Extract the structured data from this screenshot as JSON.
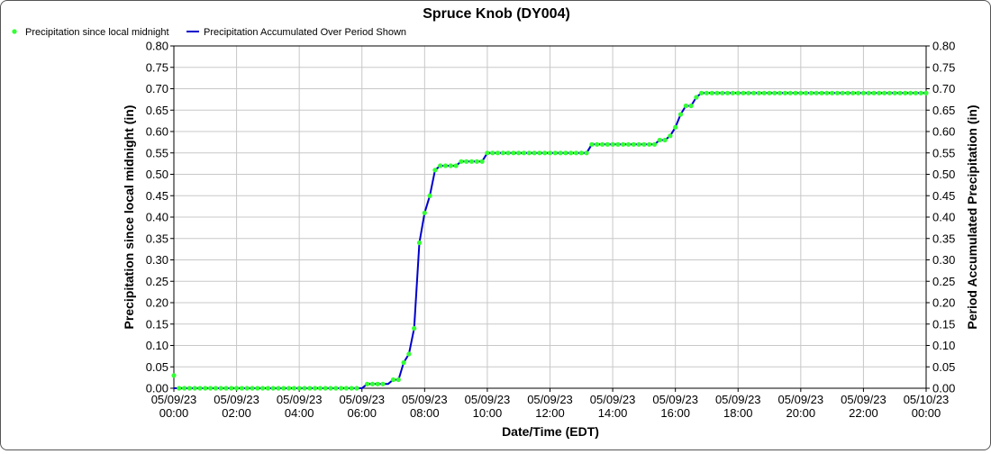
{
  "chart_data": {
    "type": "line",
    "title": "Spruce Knob (DY004)",
    "xlabel": "Date/Time (EDT)",
    "ylabel_left": "Precipitation since local midnight (in)",
    "ylabel_right": "Period Accumulated Precipitation (in)",
    "ylim": [
      0,
      0.8
    ],
    "yticks": [
      "0.00",
      "0.05",
      "0.10",
      "0.15",
      "0.20",
      "0.25",
      "0.30",
      "0.35",
      "0.40",
      "0.45",
      "0.50",
      "0.55",
      "0.60",
      "0.65",
      "0.70",
      "0.75",
      "0.80"
    ],
    "xlim_hours": [
      0,
      24
    ],
    "xticks": [
      {
        "date": "05/09/23",
        "time": "00:00"
      },
      {
        "date": "05/09/23",
        "time": "02:00"
      },
      {
        "date": "05/09/23",
        "time": "04:00"
      },
      {
        "date": "05/09/23",
        "time": "06:00"
      },
      {
        "date": "05/09/23",
        "time": "08:00"
      },
      {
        "date": "05/09/23",
        "time": "10:00"
      },
      {
        "date": "05/09/23",
        "time": "12:00"
      },
      {
        "date": "05/09/23",
        "time": "14:00"
      },
      {
        "date": "05/09/23",
        "time": "16:00"
      },
      {
        "date": "05/09/23",
        "time": "18:00"
      },
      {
        "date": "05/09/23",
        "time": "20:00"
      },
      {
        "date": "05/09/23",
        "time": "22:00"
      },
      {
        "date": "05/10/23",
        "time": "00:00"
      }
    ],
    "grid": true,
    "legend_position": "top-left",
    "series": [
      {
        "name": "Precipitation since local midnight",
        "style": "markers",
        "color": "#33ff33",
        "segments": [
          {
            "start": 0.0,
            "end": 0.0,
            "value": 0.03
          },
          {
            "start": 0.167,
            "end": 6.0,
            "value": 0.0
          },
          {
            "start": 6.167,
            "end": 6.833,
            "value": 0.01
          },
          {
            "start": 7.0,
            "end": 7.167,
            "value": 0.02
          }
        ],
        "points": [
          {
            "t": 7.333,
            "v": 0.06
          },
          {
            "t": 7.5,
            "v": 0.08
          },
          {
            "t": 7.667,
            "v": 0.14
          },
          {
            "t": 7.833,
            "v": 0.34
          },
          {
            "t": 8.0,
            "v": 0.41
          },
          {
            "t": 8.167,
            "v": 0.45
          },
          {
            "t": 8.333,
            "v": 0.51
          },
          {
            "t": 8.5,
            "v": 0.52
          },
          {
            "t": 8.667,
            "v": 0.52
          },
          {
            "t": 8.833,
            "v": 0.52
          },
          {
            "t": 9.0,
            "v": 0.52
          },
          {
            "t": 9.167,
            "v": 0.53
          },
          {
            "t": 9.333,
            "v": 0.53
          },
          {
            "t": 9.5,
            "v": 0.53
          },
          {
            "t": 9.667,
            "v": 0.53
          },
          {
            "t": 9.833,
            "v": 0.53
          },
          {
            "t": 15.333,
            "v": 0.57
          },
          {
            "t": 15.5,
            "v": 0.58
          },
          {
            "t": 15.667,
            "v": 0.58
          },
          {
            "t": 15.833,
            "v": 0.59
          },
          {
            "t": 16.0,
            "v": 0.61
          },
          {
            "t": 16.167,
            "v": 0.64
          },
          {
            "t": 16.333,
            "v": 0.66
          },
          {
            "t": 16.5,
            "v": 0.66
          },
          {
            "t": 16.667,
            "v": 0.68
          }
        ],
        "segments_late": [
          {
            "start": 10.0,
            "end": 13.167,
            "value": 0.55
          },
          {
            "start": 13.333,
            "end": 15.167,
            "value": 0.57
          },
          {
            "start": 16.833,
            "end": 24.0,
            "value": 0.69
          }
        ]
      },
      {
        "name": "Precipitation Accumulated Over Period Shown",
        "style": "line",
        "color": "#0000cc",
        "points": [
          {
            "t": 0.0,
            "v": 0.0
          },
          {
            "t": 6.0,
            "v": 0.0
          },
          {
            "t": 6.167,
            "v": 0.01
          },
          {
            "t": 6.833,
            "v": 0.01
          },
          {
            "t": 7.0,
            "v": 0.02
          },
          {
            "t": 7.167,
            "v": 0.02
          },
          {
            "t": 7.333,
            "v": 0.06
          },
          {
            "t": 7.5,
            "v": 0.08
          },
          {
            "t": 7.667,
            "v": 0.14
          },
          {
            "t": 7.833,
            "v": 0.34
          },
          {
            "t": 8.0,
            "v": 0.41
          },
          {
            "t": 8.167,
            "v": 0.45
          },
          {
            "t": 8.333,
            "v": 0.51
          },
          {
            "t": 8.5,
            "v": 0.52
          },
          {
            "t": 9.0,
            "v": 0.52
          },
          {
            "t": 9.167,
            "v": 0.53
          },
          {
            "t": 9.833,
            "v": 0.53
          },
          {
            "t": 10.0,
            "v": 0.55
          },
          {
            "t": 13.167,
            "v": 0.55
          },
          {
            "t": 13.333,
            "v": 0.57
          },
          {
            "t": 15.167,
            "v": 0.57
          },
          {
            "t": 15.333,
            "v": 0.57
          },
          {
            "t": 15.5,
            "v": 0.58
          },
          {
            "t": 15.667,
            "v": 0.58
          },
          {
            "t": 15.833,
            "v": 0.59
          },
          {
            "t": 16.0,
            "v": 0.61
          },
          {
            "t": 16.167,
            "v": 0.64
          },
          {
            "t": 16.333,
            "v": 0.66
          },
          {
            "t": 16.5,
            "v": 0.66
          },
          {
            "t": 16.667,
            "v": 0.68
          },
          {
            "t": 16.833,
            "v": 0.69
          },
          {
            "t": 24.0,
            "v": 0.69
          }
        ]
      }
    ]
  }
}
